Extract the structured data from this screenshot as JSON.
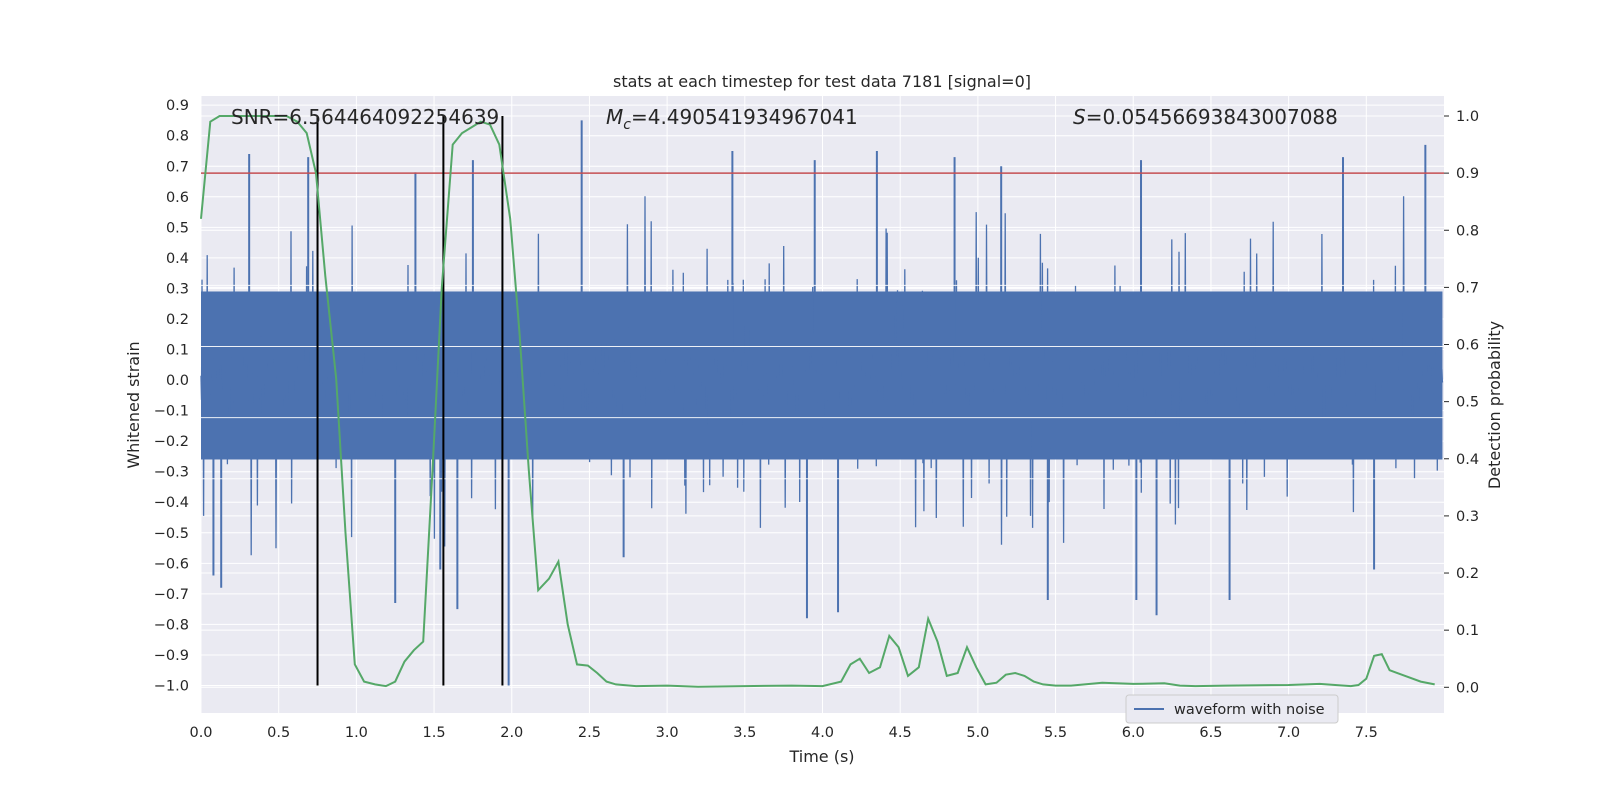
{
  "chart_data": {
    "type": "line",
    "title": "stats at each timestep for test data 7181 [signal=0]",
    "xlabel": "Time (s)",
    "ylabel": "Whitened strain",
    "y2label": "Detection probability",
    "xlim": [
      0.0,
      8.0
    ],
    "ylim": [
      -1.09,
      0.93
    ],
    "y2lim": [
      -0.045,
      1.035
    ],
    "xticks": [
      "0.0",
      "0.5",
      "1.0",
      "1.5",
      "2.0",
      "2.5",
      "3.0",
      "3.5",
      "4.0",
      "4.5",
      "5.0",
      "5.5",
      "6.0",
      "6.5",
      "7.0",
      "7.5"
    ],
    "xtick_values": [
      0.0,
      0.5,
      1.0,
      1.5,
      2.0,
      2.5,
      3.0,
      3.5,
      4.0,
      4.5,
      5.0,
      5.5,
      6.0,
      6.5,
      7.0,
      7.5
    ],
    "yticks": [
      "0.9",
      "0.8",
      "0.7",
      "0.6",
      "0.5",
      "0.4",
      "0.3",
      "0.2",
      "0.1",
      "0.0",
      "−0.1",
      "−0.2",
      "−0.3",
      "−0.4",
      "−0.5",
      "−0.6",
      "−0.7",
      "−0.8",
      "−0.9",
      "−1.0"
    ],
    "ytick_values": [
      0.9,
      0.8,
      0.7,
      0.6,
      0.5,
      0.4,
      0.3,
      0.2,
      0.1,
      0.0,
      -0.1,
      -0.2,
      -0.3,
      -0.4,
      -0.5,
      -0.6,
      -0.7,
      -0.8,
      -0.9,
      -1.0
    ],
    "y2ticks": [
      "1.0",
      "0.9",
      "0.8",
      "0.7",
      "0.6",
      "0.5",
      "0.4",
      "0.3",
      "0.2",
      "0.1",
      "0.0"
    ],
    "y2tick_values": [
      1.0,
      0.9,
      0.8,
      0.7,
      0.6,
      0.5,
      0.4,
      0.3,
      0.2,
      0.1,
      0.0
    ],
    "grid": true,
    "legend": {
      "placement": "lower-right",
      "entries": [
        "waveform with noise"
      ]
    },
    "annotations": {
      "snr": "SNR=6.564464092254639",
      "mc_symbol": "M",
      "mc_sub": "c",
      "mc_value": "=4.490541934967041",
      "s_symbol": "S",
      "s_value": "=0.05456693843007088"
    },
    "threshold": 0.9,
    "vlines": [
      0.75,
      1.56,
      1.94
    ],
    "colors": {
      "waveform": "#4c72b0",
      "probability": "#55a868",
      "threshold": "#c44e52",
      "vline": "#000000",
      "background": "#eaeaf2",
      "grid": "#ffffff"
    },
    "series": [
      {
        "name": "waveform with noise",
        "axis": "left",
        "t_start": 0.0,
        "t_end": 7.99,
        "envelope_pos": 0.45,
        "envelope_neg": -0.42,
        "peaks": [
          {
            "t": 0.31,
            "v": 0.74
          },
          {
            "t": 0.69,
            "v": 0.73
          },
          {
            "t": 1.38,
            "v": 0.68
          },
          {
            "t": 1.75,
            "v": 0.72
          },
          {
            "t": 2.45,
            "v": 0.85
          },
          {
            "t": 3.42,
            "v": 0.75
          },
          {
            "t": 3.95,
            "v": 0.72
          },
          {
            "t": 4.35,
            "v": 0.75
          },
          {
            "t": 4.85,
            "v": 0.73
          },
          {
            "t": 5.15,
            "v": 0.7
          },
          {
            "t": 6.05,
            "v": 0.72
          },
          {
            "t": 7.35,
            "v": 0.73
          },
          {
            "t": 7.88,
            "v": 0.77
          },
          {
            "t": 0.08,
            "v": -0.64
          },
          {
            "t": 0.13,
            "v": -0.68
          },
          {
            "t": 1.25,
            "v": -0.73
          },
          {
            "t": 1.65,
            "v": -0.75
          },
          {
            "t": 3.9,
            "v": -0.78
          },
          {
            "t": 4.1,
            "v": -0.76
          },
          {
            "t": 5.45,
            "v": -0.72
          },
          {
            "t": 6.02,
            "v": -0.72
          },
          {
            "t": 6.15,
            "v": -0.77
          },
          {
            "t": 6.62,
            "v": -0.72
          },
          {
            "t": 7.55,
            "v": -0.62
          },
          {
            "t": 1.98,
            "v": -1.0
          },
          {
            "t": 1.54,
            "v": -0.62
          },
          {
            "t": 2.72,
            "v": -0.58
          }
        ]
      },
      {
        "name": "detection probability",
        "axis": "right",
        "x": [
          0.0,
          0.06,
          0.12,
          0.25,
          0.4,
          0.55,
          0.62,
          0.68,
          0.74,
          0.8,
          0.87,
          0.93,
          0.99,
          1.05,
          1.12,
          1.19,
          1.25,
          1.31,
          1.37,
          1.43,
          1.49,
          1.55,
          1.62,
          1.68,
          1.74,
          1.8,
          1.86,
          1.92,
          1.99,
          2.05,
          2.11,
          2.17,
          2.24,
          2.3,
          2.36,
          2.42,
          2.49,
          2.55,
          2.61,
          2.67,
          2.8,
          3.0,
          3.2,
          3.5,
          3.8,
          4.0,
          4.12,
          4.18,
          4.24,
          4.3,
          4.37,
          4.43,
          4.49,
          4.55,
          4.62,
          4.68,
          4.74,
          4.8,
          4.87,
          4.93,
          4.99,
          5.05,
          5.12,
          5.18,
          5.24,
          5.3,
          5.36,
          5.42,
          5.5,
          5.6,
          5.8,
          6.0,
          6.2,
          6.3,
          6.4,
          6.6,
          7.0,
          7.2,
          7.3,
          7.4,
          7.45,
          7.5,
          7.55,
          7.6,
          7.65,
          7.75,
          7.85,
          7.94
        ],
        "y": [
          0.82,
          0.99,
          1.0,
          1.0,
          1.0,
          1.0,
          0.99,
          0.97,
          0.9,
          0.72,
          0.54,
          0.27,
          0.04,
          0.01,
          0.005,
          0.002,
          0.01,
          0.045,
          0.065,
          0.08,
          0.38,
          0.7,
          0.95,
          0.97,
          0.98,
          0.99,
          0.985,
          0.95,
          0.82,
          0.62,
          0.38,
          0.17,
          0.19,
          0.22,
          0.11,
          0.04,
          0.038,
          0.025,
          0.01,
          0.005,
          0.002,
          0.003,
          0.001,
          0.002,
          0.003,
          0.002,
          0.01,
          0.04,
          0.05,
          0.025,
          0.035,
          0.09,
          0.07,
          0.02,
          0.035,
          0.12,
          0.08,
          0.02,
          0.025,
          0.07,
          0.035,
          0.005,
          0.008,
          0.022,
          0.025,
          0.02,
          0.01,
          0.005,
          0.003,
          0.003,
          0.008,
          0.006,
          0.007,
          0.003,
          0.002,
          0.003,
          0.004,
          0.006,
          0.004,
          0.002,
          0.004,
          0.015,
          0.055,
          0.058,
          0.03,
          0.02,
          0.01,
          0.005
        ]
      }
    ]
  }
}
